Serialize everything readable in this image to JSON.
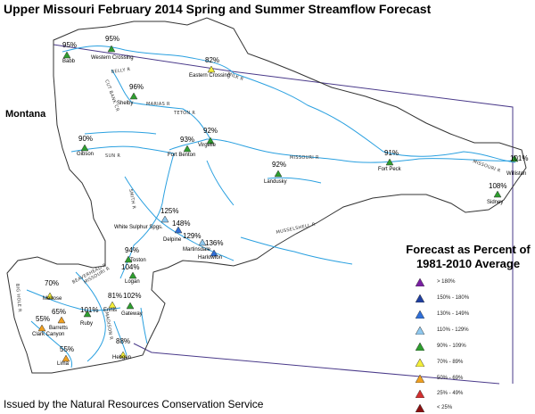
{
  "title": "Upper Missouri February 2014 Spring and Summer Streamflow Forecast",
  "footer": "Issued by the Natural Resources Conservation Service",
  "state_label": "Montana",
  "legend": {
    "title_line1": "Forecast as Percent of",
    "title_line2": "1981-2010 Average",
    "items": [
      {
        "label": "> 180%",
        "color": "#7a1fa2"
      },
      {
        "label": "150% - 180%",
        "color": "#1f3fa0"
      },
      {
        "label": "130% - 149%",
        "color": "#2f6fd8"
      },
      {
        "label": "110% - 129%",
        "color": "#8fc8ee"
      },
      {
        "label": "90% - 109%",
        "color": "#2e9e2e"
      },
      {
        "label": "70% - 89%",
        "color": "#f3ee3a"
      },
      {
        "label": "50% - 69%",
        "color": "#f0a020"
      },
      {
        "label": "25% - 49%",
        "color": "#d23030"
      },
      {
        "label": "< 25%",
        "color": "#8a1010"
      }
    ]
  },
  "river_labels": [
    {
      "text": "BELLY R"
    },
    {
      "text": "MILK R"
    },
    {
      "text": "CUT BANK CR"
    },
    {
      "text": "MARIAS R"
    },
    {
      "text": "TETON R"
    },
    {
      "text": "SUN R"
    },
    {
      "text": "MISSOURI R"
    },
    {
      "text": "MISSOURI R"
    },
    {
      "text": "SMITH R"
    },
    {
      "text": "MUSSELSHELL R"
    },
    {
      "text": "BIG HOLE R"
    },
    {
      "text": "BEAVERHEAD R"
    },
    {
      "text": "MADISON R"
    },
    {
      "text": "MISSOURI R"
    }
  ],
  "stations": [
    {
      "name": "Babb",
      "pct": "95%",
      "color": "#2e9e2e"
    },
    {
      "name": "Western Crossing",
      "pct": "95%",
      "color": "#2e9e2e"
    },
    {
      "name": "Eastern Crossing",
      "pct": "82%",
      "color": "#f3ee3a"
    },
    {
      "name": "Shelby",
      "pct": "96%",
      "color": "#2e9e2e"
    },
    {
      "name": "Virgelle",
      "pct": "92%",
      "color": "#2e9e2e"
    },
    {
      "name": "Fort Benton",
      "pct": "93%",
      "color": "#2e9e2e"
    },
    {
      "name": "Gibson",
      "pct": "90%",
      "color": "#2e9e2e"
    },
    {
      "name": "Landusky",
      "pct": "92%",
      "color": "#2e9e2e"
    },
    {
      "name": "Fort Peck",
      "pct": "91%",
      "color": "#2e9e2e"
    },
    {
      "name": "Williston",
      "pct": "101%",
      "color": "#2e9e2e"
    },
    {
      "name": "Sidney",
      "pct": "108%",
      "color": "#2e9e2e"
    },
    {
      "name": "White Sulphur Spgs.",
      "pct": "125%",
      "color": "#8fc8ee"
    },
    {
      "name": "Delpine",
      "pct": "148%",
      "color": "#2f6fd8"
    },
    {
      "name": "Martinsdale",
      "pct": "129%",
      "color": "#8fc8ee"
    },
    {
      "name": "Harlowton",
      "pct": "136%",
      "color": "#2f6fd8"
    },
    {
      "name": "Toston",
      "pct": "94%",
      "color": "#2e9e2e"
    },
    {
      "name": "Logan",
      "pct": "104%",
      "color": "#2e9e2e"
    },
    {
      "name": "Melrose",
      "pct": "70%",
      "color": "#f3ee3a"
    },
    {
      "name": "Ennis",
      "pct": "81%",
      "color": "#f3ee3a"
    },
    {
      "name": "Gateway",
      "pct": "102%",
      "color": "#2e9e2e"
    },
    {
      "name": "Barretts",
      "pct": "65%",
      "color": "#f0a020"
    },
    {
      "name": "Clark Canyon",
      "pct": "55%",
      "color": "#f0a020"
    },
    {
      "name": "Ruby",
      "pct": "101%",
      "color": "#2e9e2e"
    },
    {
      "name": "Hebgen",
      "pct": "88%",
      "color": "#f3ee3a"
    },
    {
      "name": "Lima",
      "pct": "55%",
      "color": "#f0a020"
    }
  ]
}
